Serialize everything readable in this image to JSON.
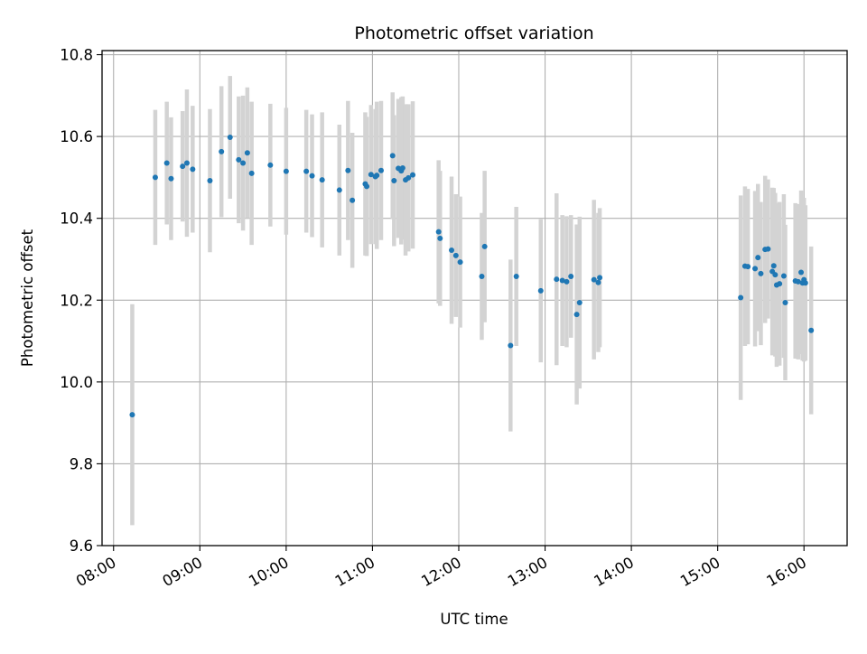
{
  "chart_data": {
    "type": "scatter",
    "title": "Photometric offset variation",
    "xlabel": "UTC time",
    "ylabel": "Photometric offset",
    "x_ticks": [
      "08:00",
      "09:00",
      "10:00",
      "11:00",
      "12:00",
      "13:00",
      "14:00",
      "15:00",
      "16:00"
    ],
    "y_ticks": [
      "9.6",
      "9.8",
      "10.0",
      "10.2",
      "10.4",
      "10.6",
      "10.8"
    ],
    "xlim": [
      "07:52",
      "16:30"
    ],
    "ylim": [
      9.6,
      10.81
    ],
    "grid": true,
    "point_color": "#1f77b4",
    "errorbar_color": "#d3d3d3",
    "series": [
      {
        "x": [
          "08:13",
          "08:29",
          "08:37",
          "08:40",
          "08:48",
          "08:51",
          "08:55",
          "09:07",
          "09:15",
          "09:21",
          "09:27",
          "09:30",
          "09:33",
          "09:36",
          "09:49",
          "10:00",
          "10:14",
          "10:18",
          "10:25",
          "10:37",
          "10:43",
          "10:46",
          "10:55",
          "10:56",
          "10:59",
          "11:02",
          "11:03",
          "11:06",
          "11:14",
          "11:15",
          "11:18",
          "11:20",
          "11:21",
          "11:23",
          "11:25",
          "11:28",
          "11:46",
          "11:47",
          "11:55",
          "11:58",
          "12:01",
          "12:16",
          "12:18",
          "12:36",
          "12:40",
          "12:57",
          "13:08",
          "13:12",
          "13:15",
          "13:18",
          "13:22",
          "13:24",
          "13:34",
          "13:37",
          "13:38",
          "15:16",
          "15:19",
          "15:21",
          "15:26",
          "15:28",
          "15:30",
          "15:33",
          "15:35",
          "15:38",
          "15:39",
          "15:40",
          "15:41",
          "15:43",
          "15:46",
          "15:47",
          "15:54",
          "15:56",
          "15:58",
          "15:59",
          "16:00",
          "16:01",
          "16:05"
        ],
        "y": [
          9.92,
          10.5,
          10.535,
          10.497,
          10.527,
          10.535,
          10.52,
          10.492,
          10.563,
          10.598,
          10.543,
          10.535,
          10.56,
          10.51,
          10.53,
          10.515,
          10.515,
          10.504,
          10.494,
          10.469,
          10.517,
          10.444,
          10.484,
          10.478,
          10.507,
          10.502,
          10.505,
          10.517,
          10.553,
          10.492,
          10.522,
          10.516,
          10.523,
          10.494,
          10.499,
          10.506,
          10.367,
          10.351,
          10.322,
          10.309,
          10.293,
          10.258,
          10.331,
          10.089,
          10.258,
          10.223,
          10.251,
          10.248,
          10.245,
          10.258,
          10.165,
          10.194,
          10.25,
          10.243,
          10.255,
          10.206,
          10.283,
          10.282,
          10.277,
          10.304,
          10.265,
          10.324,
          10.325,
          10.27,
          10.284,
          10.262,
          10.237,
          10.24,
          10.259,
          10.194,
          10.247,
          10.245,
          10.268,
          10.242,
          10.25,
          10.242,
          10.126
        ],
        "err": [
          0.27,
          0.165,
          0.15,
          0.15,
          0.135,
          0.18,
          0.155,
          0.175,
          0.16,
          0.15,
          0.155,
          0.165,
          0.16,
          0.175,
          0.15,
          0.155,
          0.15,
          0.15,
          0.165,
          0.16,
          0.17,
          0.165,
          0.175,
          0.17,
          0.17,
          0.165,
          0.18,
          0.17,
          0.155,
          0.16,
          0.17,
          0.18,
          0.175,
          0.185,
          0.18,
          0.18,
          0.175,
          0.165,
          0.18,
          0.15,
          0.16,
          0.155,
          0.185,
          0.21,
          0.17,
          0.175,
          0.21,
          0.16,
          0.16,
          0.15,
          0.22,
          0.21,
          0.195,
          0.17,
          0.17,
          0.25,
          0.195,
          0.19,
          0.19,
          0.18,
          0.175,
          0.18,
          0.17,
          0.205,
          0.19,
          0.2,
          0.2,
          0.2,
          0.2,
          0.19,
          0.19,
          0.19,
          0.2,
          0.19,
          0.2,
          0.19,
          0.205
        ]
      }
    ]
  }
}
